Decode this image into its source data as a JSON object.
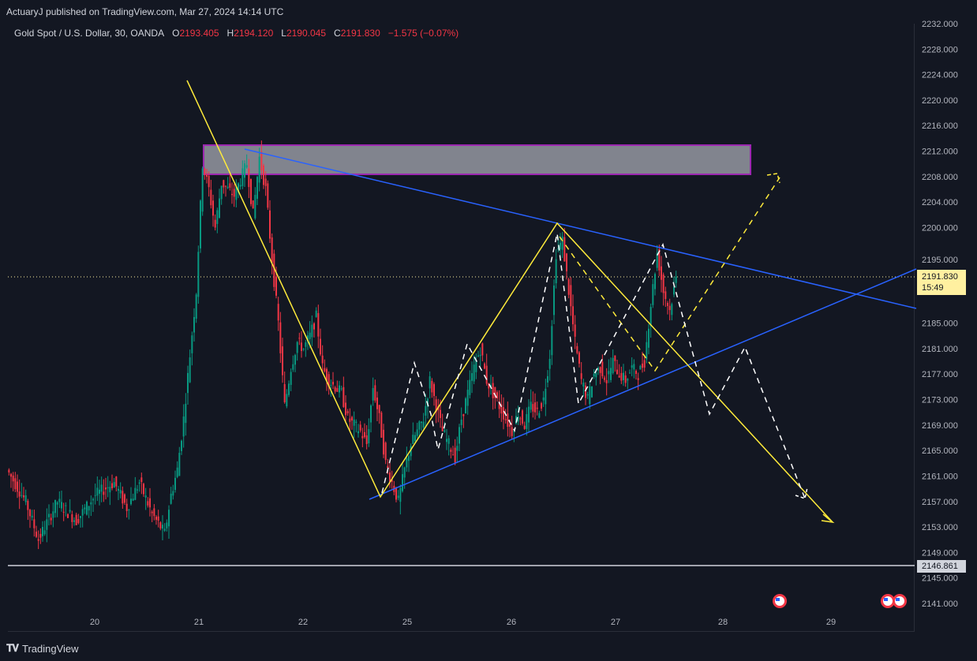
{
  "header": {
    "published": "ActuaryJ published on TradingView.com, Mar 27, 2024 14:14 UTC",
    "symbol": "Gold Spot / U.S. Dollar, 30, OANDA",
    "open_label": "O",
    "open": "2193.405",
    "high_label": "H",
    "high": "2194.120",
    "low_label": "L",
    "low": "2190.045",
    "close_label": "C",
    "close": "2191.830",
    "change": "−1.575 (−0.07%)"
  },
  "price_badge": {
    "price": "2191.830",
    "timer": "15:49"
  },
  "level_badge": "2146.861",
  "footer": {
    "brand": "TradingView"
  },
  "colors": {
    "bg": "#131722",
    "up": "#089981",
    "down": "#f23645",
    "yellow": "#ffeb3b",
    "blue": "#2962ff",
    "zone": "#9598a1",
    "zone_border": "#9c27b0"
  },
  "chart_data": {
    "type": "candlestick",
    "y_ticks": [
      "2232.000",
      "2228.000",
      "2224.000",
      "2220.000",
      "2216.000",
      "2212.000",
      "2208.000",
      "2204.000",
      "2200.000",
      "2195.000",
      "2185.000",
      "2181.000",
      "2177.000",
      "2173.000",
      "2169.000",
      "2165.000",
      "2161.000",
      "2157.000",
      "2153.000",
      "2149.000",
      "2145.000",
      "2141.000"
    ],
    "x_ticks": [
      "20",
      "21",
      "22",
      "25",
      "26",
      "27",
      "28",
      "29"
    ],
    "ylim": [
      2138,
      2234
    ],
    "price_path": [
      [
        0,
        2162
      ],
      [
        3,
        2157
      ],
      [
        5,
        2151
      ],
      [
        8,
        2157
      ],
      [
        11,
        2154
      ],
      [
        14,
        2158
      ],
      [
        17,
        2160
      ],
      [
        19,
        2156
      ],
      [
        21,
        2160
      ],
      [
        23,
        2155
      ],
      [
        25,
        2152
      ],
      [
        26,
        2158
      ],
      [
        27,
        2162
      ],
      [
        28,
        2170
      ],
      [
        30,
        2190
      ],
      [
        31,
        2210
      ],
      [
        32,
        2206
      ],
      [
        33,
        2200
      ],
      [
        34,
        2207
      ],
      [
        36,
        2205
      ],
      [
        38,
        2210
      ],
      [
        39,
        2202
      ],
      [
        40,
        2211
      ],
      [
        41,
        2206
      ],
      [
        42,
        2195
      ],
      [
        43,
        2185
      ],
      [
        44,
        2172
      ],
      [
        45,
        2178
      ],
      [
        46,
        2182
      ],
      [
        47,
        2181
      ],
      [
        48,
        2183
      ],
      [
        49,
        2186
      ],
      [
        50,
        2178
      ],
      [
        51,
        2176
      ],
      [
        52,
        2175
      ],
      [
        53,
        2174
      ],
      [
        54,
        2170
      ],
      [
        55,
        2169
      ],
      [
        56,
        2168
      ],
      [
        57,
        2166
      ],
      [
        58,
        2175
      ],
      [
        59,
        2170
      ],
      [
        60,
        2163
      ],
      [
        61,
        2160
      ],
      [
        62,
        2157
      ],
      [
        63,
        2162
      ],
      [
        64,
        2166
      ],
      [
        65,
        2168
      ],
      [
        66,
        2170
      ],
      [
        67,
        2176
      ],
      [
        68,
        2172
      ],
      [
        69,
        2168
      ],
      [
        70,
        2166
      ],
      [
        71,
        2164
      ],
      [
        72,
        2170
      ],
      [
        73,
        2174
      ],
      [
        74,
        2178
      ],
      [
        75,
        2181
      ],
      [
        76,
        2176
      ],
      [
        77,
        2174
      ],
      [
        78,
        2172
      ],
      [
        79,
        2170
      ],
      [
        80,
        2168
      ],
      [
        81,
        2171
      ],
      [
        82,
        2169
      ],
      [
        83,
        2172
      ],
      [
        84,
        2171
      ],
      [
        85,
        2173
      ],
      [
        86,
        2180
      ],
      [
        87,
        2196
      ],
      [
        88,
        2198
      ],
      [
        89,
        2190
      ],
      [
        90,
        2182
      ],
      [
        91,
        2176
      ],
      [
        92,
        2173
      ],
      [
        93,
        2177
      ],
      [
        94,
        2178
      ],
      [
        95,
        2176
      ],
      [
        96,
        2179
      ],
      [
        97,
        2177
      ],
      [
        98,
        2176
      ],
      [
        99,
        2178
      ],
      [
        100,
        2177
      ],
      [
        101,
        2179
      ],
      [
        102,
        2188
      ],
      [
        103,
        2196
      ],
      [
        104,
        2190
      ],
      [
        105,
        2187
      ],
      [
        106,
        2192
      ]
    ],
    "x_range": [
      0,
      106
    ]
  }
}
